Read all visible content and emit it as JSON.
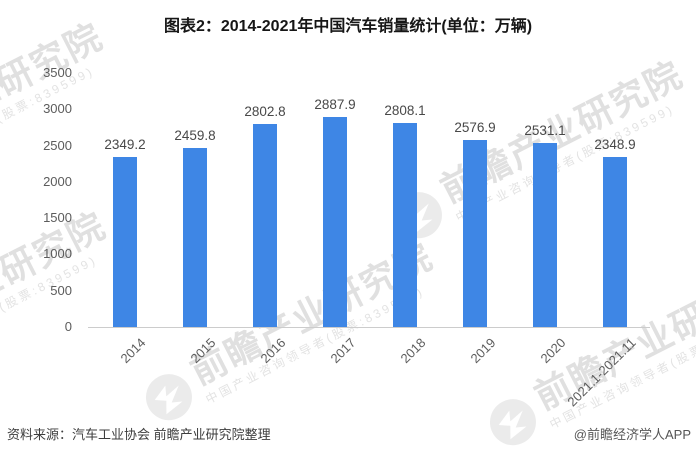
{
  "title": "图表2：2014-2021年中国汽车销量统计(单位：万辆)",
  "chart_data": {
    "type": "bar",
    "title": "图表2：2014-2021年中国汽车销量统计(单位：万辆)",
    "categories": [
      "2014",
      "2015",
      "2016",
      "2017",
      "2018",
      "2019",
      "2020",
      "2021.1-2021.11"
    ],
    "values": [
      2349.2,
      2459.8,
      2802.8,
      2887.9,
      2808.1,
      2576.9,
      2531.1,
      2348.9
    ],
    "xlabel": "",
    "ylabel": "",
    "ylim": [
      0,
      3500
    ],
    "yticks": [
      0,
      500,
      1000,
      1500,
      2000,
      2500,
      3000,
      3500
    ],
    "bar_color": "#3E86E5",
    "grid": false,
    "legend": null,
    "data_labels_shown": true
  },
  "watermark": {
    "main": "前瞻产业研究院",
    "sub": "中国产业咨询领导者(股票:839599)"
  },
  "footer": {
    "source": "资料来源：汽车工业协会 前瞻产业研究院整理",
    "credit": "@前瞻经济学人APP"
  }
}
